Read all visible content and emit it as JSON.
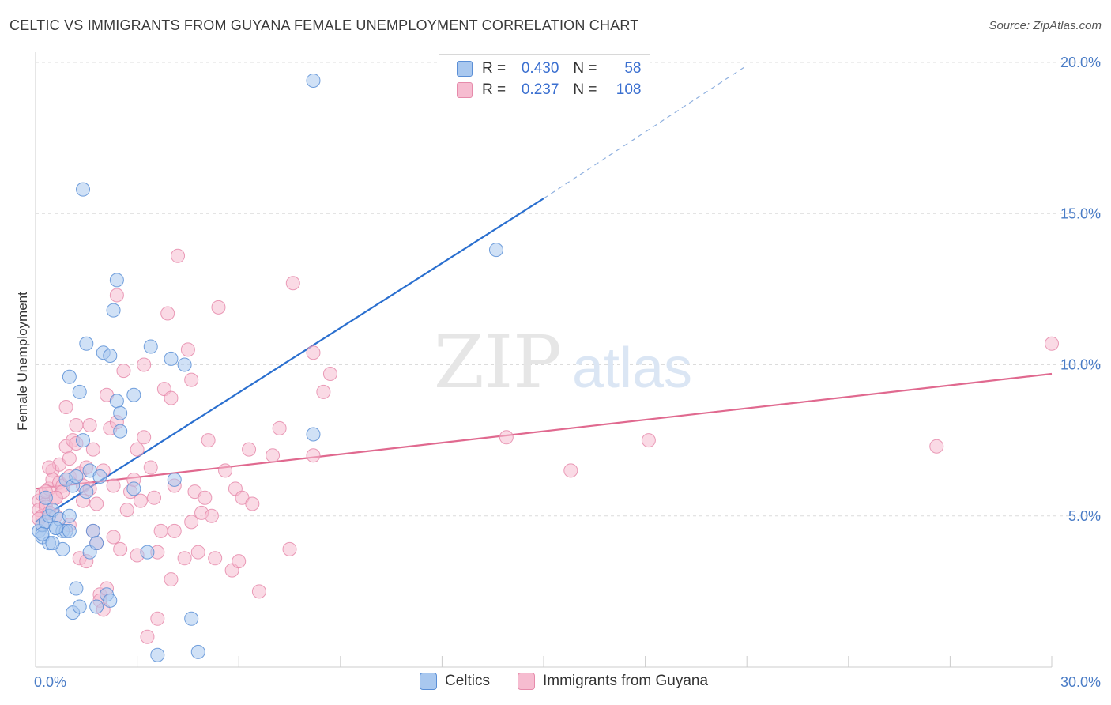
{
  "title": "CELTIC VS IMMIGRANTS FROM GUYANA FEMALE UNEMPLOYMENT CORRELATION CHART",
  "source": "Source: ZipAtlas.com",
  "watermark": {
    "zip": "ZIP",
    "atlas": "atlas"
  },
  "legend": {
    "rows": [
      {
        "r_label": "R =",
        "r_value": "0.430",
        "n_label": "N =",
        "n_value": "58"
      },
      {
        "r_label": "R =",
        "r_value": "0.237",
        "n_label": "N =",
        "n_value": "108"
      }
    ]
  },
  "bottom_legend": {
    "celtics": "Celtics",
    "guyana": "Immigrants from Guyana"
  },
  "colors": {
    "celtics_fill": "#a9c8ef",
    "celtics_stroke": "#5b8fd6",
    "celtics_line": "#2a6fcf",
    "guyana_fill": "#f6bcd0",
    "guyana_stroke": "#e68bab",
    "guyana_line": "#e0698f",
    "tick": "#4a7cc6",
    "grid": "#dcdcdc"
  },
  "chart_data": {
    "type": "scatter",
    "ylabel": "Female Unemployment",
    "xlabel": "",
    "xlim": [
      0,
      30
    ],
    "ylim": [
      0,
      20
    ],
    "x_tick_labels": [
      "0.0%",
      "30.0%"
    ],
    "y_ticks": [
      5,
      10,
      15,
      20
    ],
    "y_tick_labels": [
      "5.0%",
      "10.0%",
      "15.0%",
      "20.0%"
    ],
    "grid": true,
    "legend_position": "top-center",
    "series": [
      {
        "name": "Celtics",
        "points": [
          [
            0.1,
            4.5
          ],
          [
            0.2,
            4.3
          ],
          [
            0.2,
            4.7
          ],
          [
            0.3,
            4.8
          ],
          [
            0.4,
            5.0
          ],
          [
            0.4,
            4.1
          ],
          [
            0.5,
            5.2
          ],
          [
            0.6,
            4.6
          ],
          [
            0.7,
            4.9
          ],
          [
            0.8,
            4.5
          ],
          [
            0.8,
            3.9
          ],
          [
            0.9,
            4.5
          ],
          [
            0.9,
            6.2
          ],
          [
            1.0,
            4.5
          ],
          [
            1.0,
            5.0
          ],
          [
            1.1,
            6.0
          ],
          [
            1.2,
            6.3
          ],
          [
            1.1,
            1.8
          ],
          [
            1.2,
            2.6
          ],
          [
            1.3,
            2.0
          ],
          [
            1.4,
            7.5
          ],
          [
            1.3,
            9.1
          ],
          [
            1.5,
            10.7
          ],
          [
            1.5,
            5.8
          ],
          [
            1.6,
            3.8
          ],
          [
            1.6,
            6.5
          ],
          [
            1.7,
            4.5
          ],
          [
            1.8,
            4.1
          ],
          [
            1.9,
            6.3
          ],
          [
            1.8,
            2.0
          ],
          [
            2.0,
            10.4
          ],
          [
            2.1,
            2.4
          ],
          [
            2.2,
            10.3
          ],
          [
            2.3,
            11.8
          ],
          [
            2.4,
            12.8
          ],
          [
            2.4,
            8.8
          ],
          [
            2.5,
            8.4
          ],
          [
            2.5,
            7.8
          ],
          [
            2.9,
            9.0
          ],
          [
            3.3,
            3.8
          ],
          [
            3.4,
            10.6
          ],
          [
            3.6,
            0.4
          ],
          [
            4.0,
            10.2
          ],
          [
            4.1,
            6.2
          ],
          [
            4.4,
            10.0
          ],
          [
            4.6,
            1.6
          ],
          [
            4.8,
            0.5
          ],
          [
            8.2,
            19.4
          ],
          [
            8.2,
            7.7
          ],
          [
            13.6,
            13.8
          ],
          [
            1.0,
            9.6
          ],
          [
            0.6,
            4.6
          ],
          [
            0.3,
            5.6
          ],
          [
            2.2,
            2.2
          ],
          [
            1.4,
            15.8
          ],
          [
            0.5,
            4.1
          ],
          [
            0.2,
            4.4
          ],
          [
            2.9,
            5.9
          ]
        ]
      },
      {
        "name": "Immigrants from Guyana",
        "points": [
          [
            0.1,
            5.5
          ],
          [
            0.1,
            5.2
          ],
          [
            0.2,
            5.7
          ],
          [
            0.2,
            5.0
          ],
          [
            0.3,
            5.4
          ],
          [
            0.3,
            5.3
          ],
          [
            0.4,
            5.9
          ],
          [
            0.4,
            5.1
          ],
          [
            0.5,
            6.5
          ],
          [
            0.5,
            6.2
          ],
          [
            0.6,
            5.6
          ],
          [
            0.6,
            5.0
          ],
          [
            0.7,
            6.7
          ],
          [
            0.7,
            6.1
          ],
          [
            0.8,
            6.0
          ],
          [
            0.8,
            5.8
          ],
          [
            0.9,
            7.3
          ],
          [
            0.9,
            8.6
          ],
          [
            1.0,
            6.9
          ],
          [
            1.0,
            6.3
          ],
          [
            1.1,
            7.5
          ],
          [
            1.2,
            7.4
          ],
          [
            1.2,
            8.0
          ],
          [
            1.3,
            6.4
          ],
          [
            1.3,
            3.6
          ],
          [
            1.4,
            6.0
          ],
          [
            1.4,
            5.5
          ],
          [
            1.5,
            6.6
          ],
          [
            1.6,
            8.0
          ],
          [
            1.6,
            5.9
          ],
          [
            1.7,
            7.2
          ],
          [
            1.7,
            4.5
          ],
          [
            1.8,
            4.1
          ],
          [
            1.8,
            5.4
          ],
          [
            1.9,
            2.4
          ],
          [
            1.9,
            2.2
          ],
          [
            2.0,
            1.9
          ],
          [
            2.0,
            6.5
          ],
          [
            2.1,
            9.0
          ],
          [
            2.1,
            2.6
          ],
          [
            2.2,
            7.9
          ],
          [
            2.3,
            4.3
          ],
          [
            2.4,
            8.1
          ],
          [
            2.4,
            12.3
          ],
          [
            2.5,
            3.9
          ],
          [
            2.6,
            9.8
          ],
          [
            2.7,
            5.2
          ],
          [
            2.8,
            5.8
          ],
          [
            2.9,
            6.2
          ],
          [
            3.0,
            7.2
          ],
          [
            3.0,
            3.7
          ],
          [
            3.1,
            5.5
          ],
          [
            3.2,
            10.0
          ],
          [
            3.2,
            7.6
          ],
          [
            3.3,
            1.0
          ],
          [
            3.4,
            6.6
          ],
          [
            3.5,
            5.6
          ],
          [
            3.6,
            1.6
          ],
          [
            3.7,
            4.5
          ],
          [
            3.8,
            9.2
          ],
          [
            3.9,
            11.7
          ],
          [
            4.0,
            2.9
          ],
          [
            4.0,
            8.9
          ],
          [
            4.1,
            6.0
          ],
          [
            4.1,
            4.5
          ],
          [
            4.2,
            13.6
          ],
          [
            4.4,
            3.6
          ],
          [
            4.5,
            10.5
          ],
          [
            4.6,
            9.5
          ],
          [
            4.6,
            4.8
          ],
          [
            4.7,
            5.8
          ],
          [
            4.9,
            5.1
          ],
          [
            5.0,
            5.6
          ],
          [
            5.1,
            7.5
          ],
          [
            5.2,
            5.0
          ],
          [
            5.3,
            3.6
          ],
          [
            5.4,
            11.9
          ],
          [
            5.6,
            6.5
          ],
          [
            5.8,
            3.2
          ],
          [
            5.9,
            5.9
          ],
          [
            6.1,
            5.6
          ],
          [
            6.3,
            7.2
          ],
          [
            6.4,
            5.4
          ],
          [
            6.6,
            2.5
          ],
          [
            7.0,
            7.0
          ],
          [
            7.2,
            7.9
          ],
          [
            7.5,
            3.9
          ],
          [
            7.6,
            12.7
          ],
          [
            8.2,
            7.0
          ],
          [
            8.2,
            10.4
          ],
          [
            8.5,
            9.1
          ],
          [
            8.7,
            9.7
          ],
          [
            13.9,
            7.6
          ],
          [
            15.8,
            6.5
          ],
          [
            18.1,
            7.5
          ],
          [
            26.6,
            7.3
          ],
          [
            30.0,
            10.7
          ],
          [
            0.1,
            4.9
          ],
          [
            0.2,
            4.7
          ],
          [
            0.3,
            5.8
          ],
          [
            0.4,
            6.6
          ],
          [
            0.6,
            5.6
          ],
          [
            1.0,
            4.7
          ],
          [
            1.5,
            3.5
          ],
          [
            2.3,
            6.0
          ],
          [
            3.6,
            3.8
          ],
          [
            4.8,
            3.8
          ],
          [
            6.0,
            3.5
          ]
        ]
      }
    ],
    "trendlines": [
      {
        "series": "Celtics",
        "x": [
          0,
          15.0
        ],
        "y": [
          4.8,
          15.5
        ],
        "dashed_extension_to": [
          21.0,
          19.9
        ]
      },
      {
        "series": "Immigrants from Guyana",
        "x": [
          0,
          30.0
        ],
        "y": [
          5.9,
          9.7
        ]
      }
    ]
  }
}
